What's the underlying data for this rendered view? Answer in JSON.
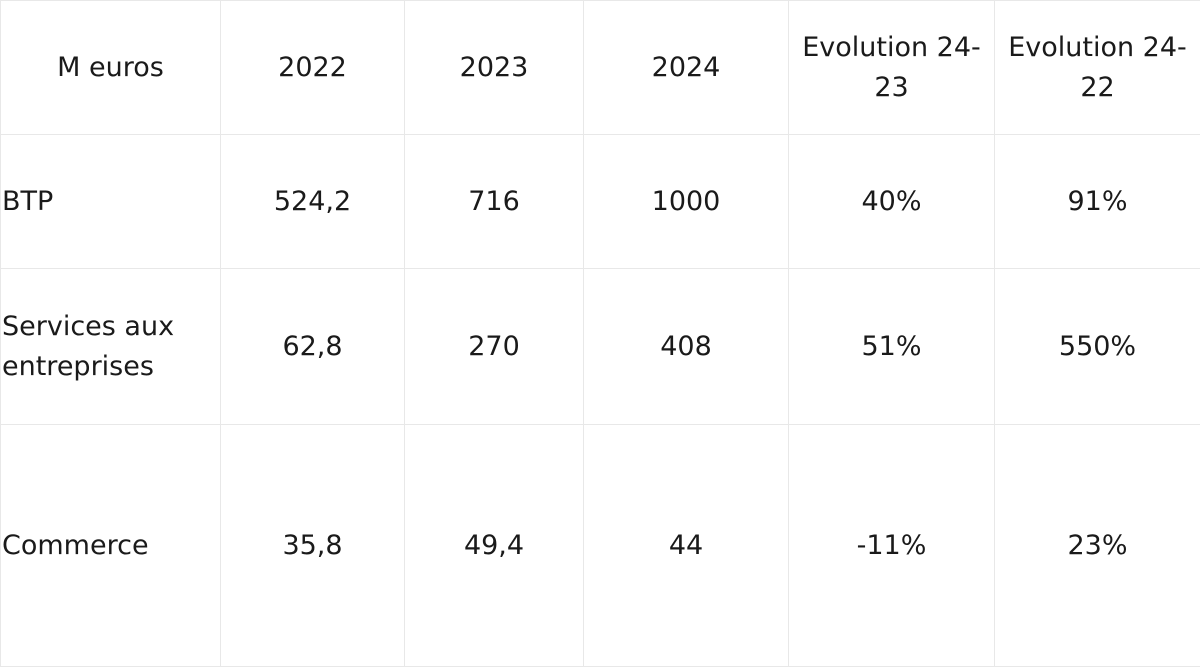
{
  "chart_data": {
    "type": "table",
    "columns": [
      "M euros",
      "2022",
      "2023",
      "2024",
      "Evolution 24-23",
      "Evolution 24-22"
    ],
    "rows": [
      {
        "label": "BTP",
        "values": [
          "524,2",
          "716",
          "1000",
          "40%",
          "91%"
        ]
      },
      {
        "label": "Services aux entreprises",
        "values": [
          "62,8",
          "270",
          "408",
          "51%",
          "550%"
        ]
      },
      {
        "label": "Commerce",
        "values": [
          "35,8",
          "49,4",
          "44",
          "-11%",
          "23%"
        ]
      }
    ]
  }
}
